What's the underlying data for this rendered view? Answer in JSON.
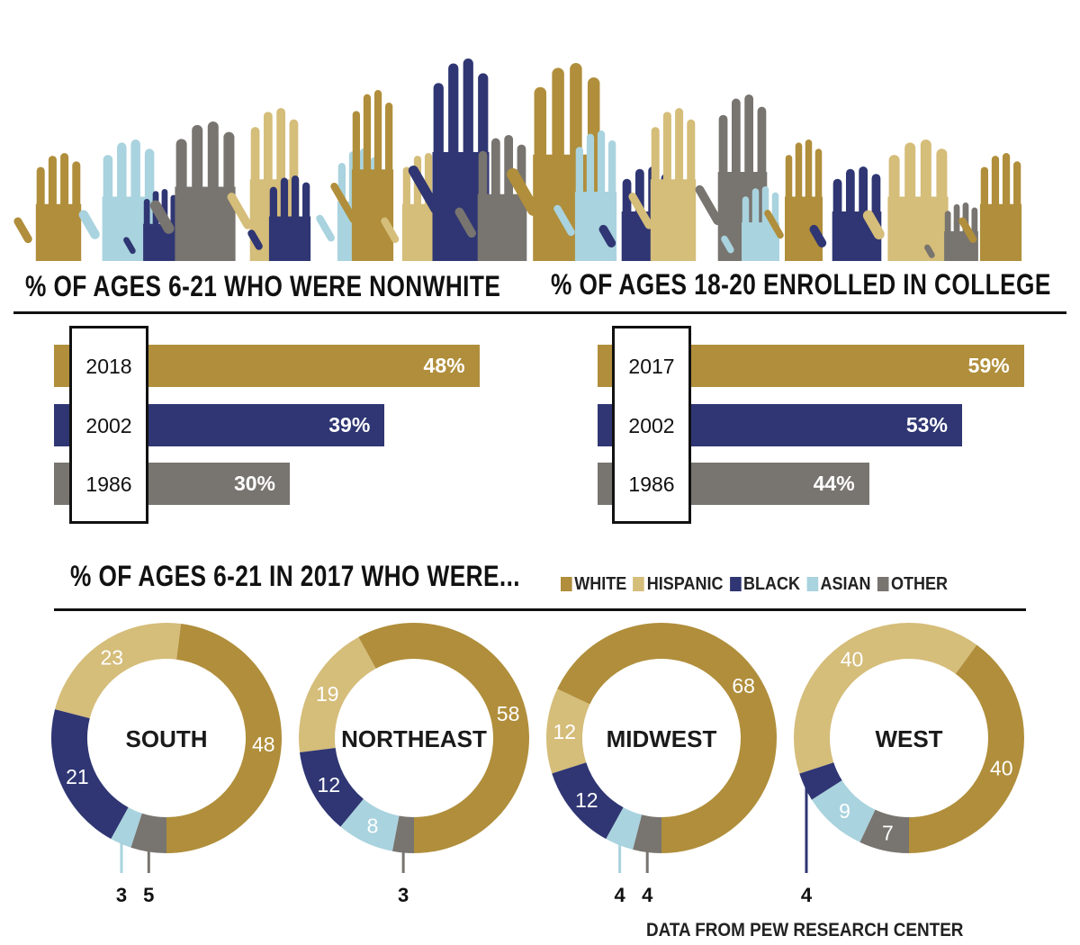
{
  "colors": {
    "white": "#b08e3b",
    "hispanic": "#d5bd7a",
    "black": "#2f3673",
    "asian": "#a9d3de",
    "other": "#78746f"
  },
  "hands_icon": "raised-hands-illustration",
  "chart_data": [
    {
      "type": "bar",
      "orientation": "horizontal",
      "title": "% OF AGES 6-21 WHO WERE NONWHITE",
      "categories": [
        "2018",
        "2002",
        "1986"
      ],
      "values": [
        48,
        39,
        30
      ],
      "labels": [
        "48%",
        "39%",
        "30%"
      ],
      "bar_colors": [
        "#b08e3b",
        "#2f3673",
        "#78746f"
      ]
    },
    {
      "type": "bar",
      "orientation": "horizontal",
      "title": "% OF AGES 18-20 ENROLLED IN COLLEGE",
      "categories": [
        "2017",
        "2002",
        "1986"
      ],
      "values": [
        59,
        53,
        44
      ],
      "labels": [
        "59%",
        "53%",
        "44%"
      ],
      "bar_colors": [
        "#b08e3b",
        "#2f3673",
        "#78746f"
      ]
    },
    {
      "type": "pie",
      "variant": "donut",
      "title": "% OF AGES 6-21 IN 2017 WHO WERE...",
      "legend": [
        "WHITE",
        "HISPANIC",
        "BLACK",
        "ASIAN",
        "OTHER"
      ],
      "legend_placement": "top-right",
      "series": [
        {
          "name": "SOUTH",
          "values": [
            48,
            23,
            21,
            3,
            5
          ]
        },
        {
          "name": "NORTHEAST",
          "values": [
            58,
            19,
            12,
            8,
            3
          ]
        },
        {
          "name": "MIDWEST",
          "values": [
            68,
            12,
            12,
            4,
            4
          ]
        },
        {
          "name": "WEST",
          "values": [
            40,
            40,
            4,
            9,
            7
          ]
        }
      ]
    }
  ],
  "source": "DATA FROM PEW RESEARCH CENTER"
}
